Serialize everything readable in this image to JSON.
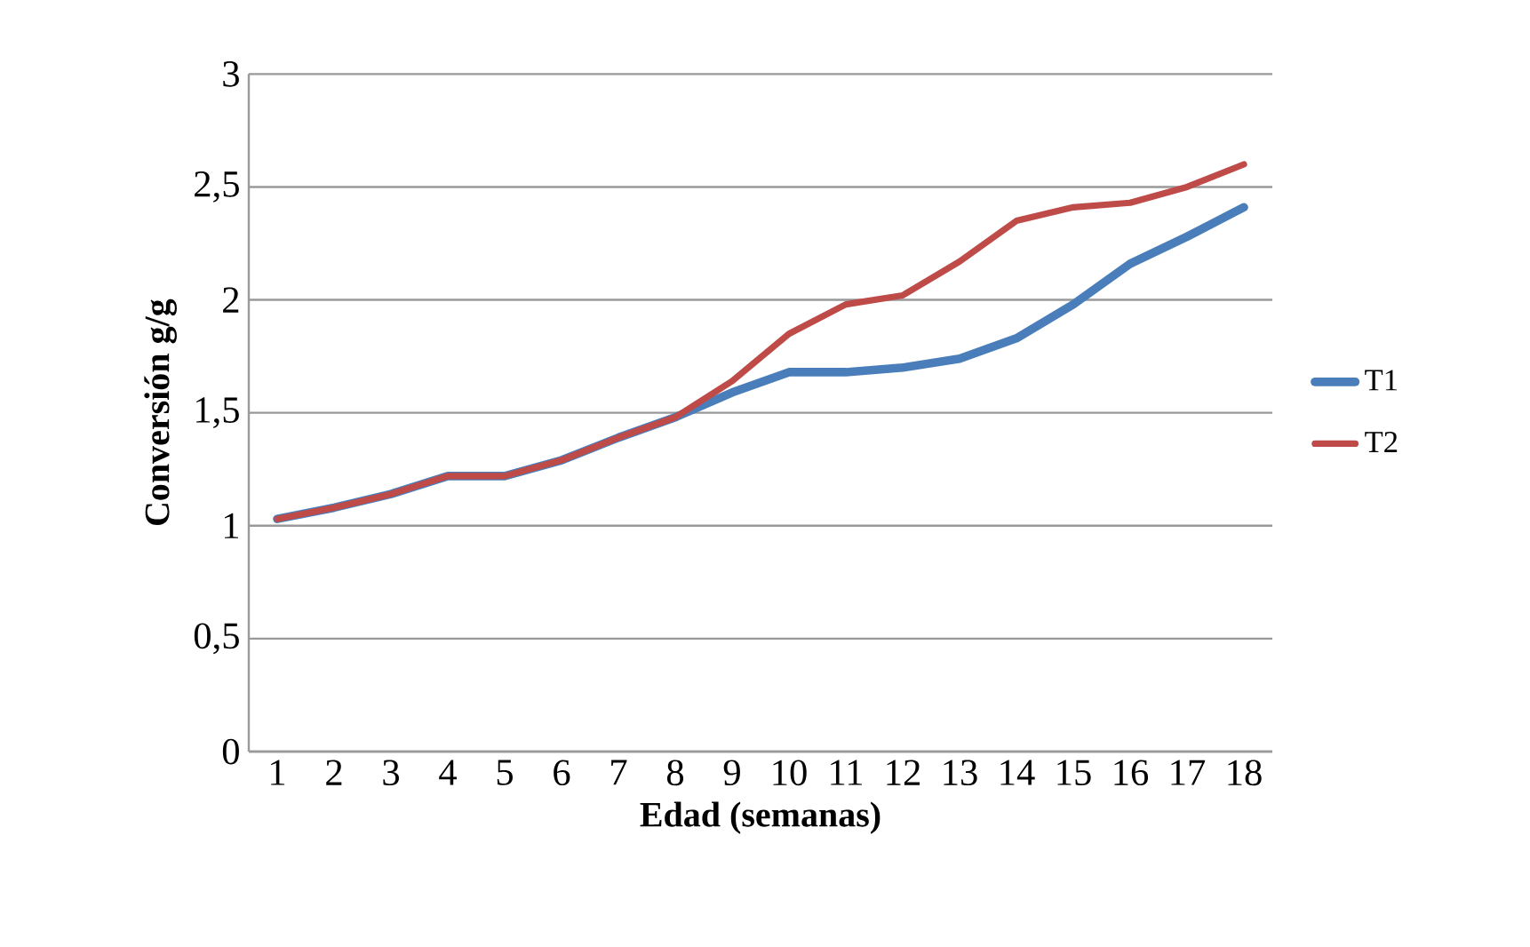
{
  "chart_data": {
    "type": "line",
    "xlabel": "Edad (semanas)",
    "ylabel": "Conversión g/g",
    "categories": [
      "1",
      "2",
      "3",
      "4",
      "5",
      "6",
      "7",
      "8",
      "9",
      "10",
      "11",
      "12",
      "13",
      "14",
      "15",
      "16",
      "17",
      "18"
    ],
    "series": [
      {
        "name": "T1",
        "color": "#4a7ebb",
        "values": [
          1.03,
          1.08,
          1.14,
          1.22,
          1.22,
          1.29,
          1.39,
          1.48,
          1.59,
          1.68,
          1.68,
          1.7,
          1.74,
          1.83,
          1.98,
          2.16,
          2.28,
          2.41
        ]
      },
      {
        "name": "T2",
        "color": "#be4b48",
        "values": [
          1.03,
          1.08,
          1.14,
          1.22,
          1.22,
          1.29,
          1.39,
          1.48,
          1.64,
          1.85,
          1.98,
          2.02,
          2.17,
          2.35,
          2.41,
          2.43,
          2.5,
          2.6
        ]
      }
    ],
    "ylim": [
      0,
      3
    ],
    "yticks": [
      {
        "value": 0,
        "label": "0"
      },
      {
        "value": 0.5,
        "label": "0,5"
      },
      {
        "value": 1,
        "label": "1"
      },
      {
        "value": 1.5,
        "label": "1,5"
      },
      {
        "value": 2,
        "label": "2"
      },
      {
        "value": 2.5,
        "label": "2,5"
      },
      {
        "value": 3,
        "label": "3"
      }
    ],
    "grid": "y",
    "legend": "right",
    "marker": "none",
    "line_style": "solid"
  }
}
